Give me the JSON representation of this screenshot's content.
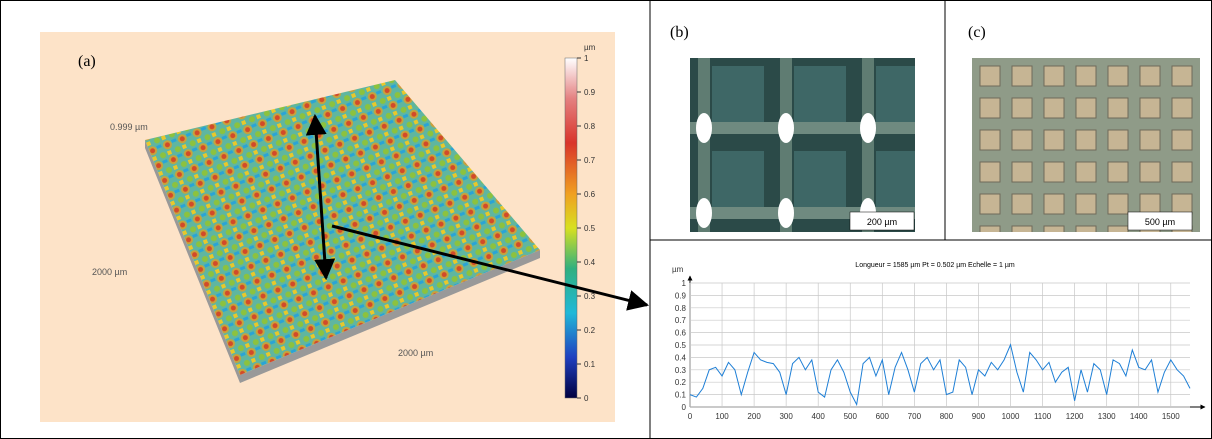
{
  "panel_a": {
    "label": "(a)",
    "height_label": "0.999 µm",
    "width_label_left": "2000 µm",
    "width_label_bottom": "2000 µm",
    "colorbar": {
      "unit": "µm",
      "ylim": [
        0,
        1
      ],
      "ticks": [
        0,
        0.1,
        0.2,
        0.3,
        0.4,
        0.5,
        0.6,
        0.7,
        0.8,
        0.9,
        1
      ]
    }
  },
  "panel_b": {
    "label": "(b)",
    "scale_bar": "200 µm"
  },
  "panel_c": {
    "label": "(c)",
    "scale_bar": "500 µm"
  },
  "chart_data": {
    "type": "line",
    "title": "Longueur = 1585 µm  Pt = 0.502 µm  Echelle = 1 µm",
    "y_label": "µm",
    "x": [
      0,
      20,
      40,
      60,
      80,
      100,
      120,
      140,
      160,
      180,
      200,
      220,
      240,
      260,
      280,
      300,
      320,
      340,
      360,
      380,
      400,
      420,
      440,
      460,
      480,
      500,
      520,
      540,
      560,
      580,
      600,
      620,
      640,
      660,
      680,
      700,
      720,
      740,
      760,
      780,
      800,
      820,
      840,
      860,
      880,
      900,
      920,
      940,
      960,
      980,
      1000,
      1020,
      1040,
      1060,
      1080,
      1100,
      1120,
      1140,
      1160,
      1180,
      1200,
      1220,
      1240,
      1260,
      1280,
      1300,
      1320,
      1340,
      1360,
      1380,
      1400,
      1420,
      1440,
      1460,
      1480,
      1500,
      1520,
      1540,
      1560
    ],
    "series": [
      {
        "color": "#1e7fd6",
        "values": [
          0.1,
          0.08,
          0.15,
          0.3,
          0.32,
          0.25,
          0.36,
          0.3,
          0.1,
          0.28,
          0.44,
          0.38,
          0.36,
          0.35,
          0.28,
          0.1,
          0.35,
          0.4,
          0.3,
          0.38,
          0.12,
          0.08,
          0.3,
          0.38,
          0.28,
          0.12,
          0.02,
          0.35,
          0.4,
          0.25,
          0.38,
          0.1,
          0.32,
          0.44,
          0.3,
          0.12,
          0.35,
          0.4,
          0.3,
          0.38,
          0.1,
          0.12,
          0.38,
          0.32,
          0.1,
          0.3,
          0.25,
          0.36,
          0.3,
          0.38,
          0.502,
          0.28,
          0.12,
          0.44,
          0.38,
          0.3,
          0.36,
          0.2,
          0.28,
          0.32,
          0.05,
          0.3,
          0.12,
          0.35,
          0.3,
          0.1,
          0.38,
          0.35,
          0.25,
          0.46,
          0.32,
          0.3,
          0.38,
          0.12,
          0.28,
          0.38,
          0.3,
          0.25,
          0.15
        ]
      }
    ],
    "xlim": [
      0,
      1560
    ],
    "ylim": [
      0,
      1
    ],
    "xticks": [
      0,
      100,
      200,
      300,
      400,
      500,
      600,
      700,
      800,
      900,
      1000,
      1100,
      1200,
      1300,
      1400,
      1500
    ],
    "yticks": [
      0,
      0.1,
      0.2,
      0.3,
      0.4,
      0.5,
      0.6,
      0.7,
      0.8,
      0.9,
      1
    ],
    "grid": true
  }
}
